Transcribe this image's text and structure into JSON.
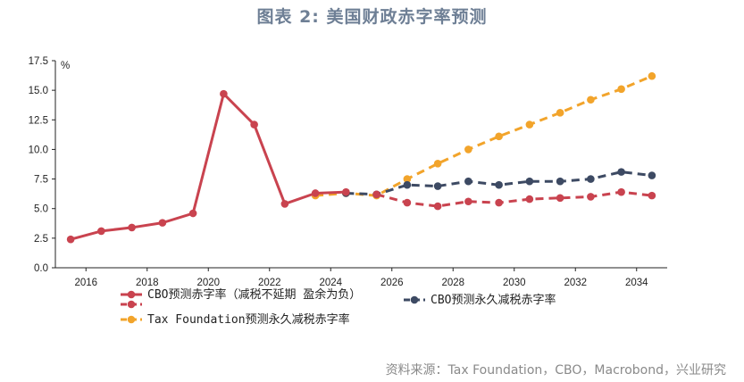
{
  "title": "图表 2:  美国财政赤字率预测",
  "source": "资料来源：Tax Foundation，CBO，Macrobond，兴业研究",
  "chart_data": {
    "type": "line",
    "ylabel": "%",
    "ylim": [
      0,
      17.5
    ],
    "xlim": [
      2015,
      2035
    ],
    "yticks": [
      "0.0",
      "2.5",
      "5.0",
      "7.5",
      "10.0",
      "12.5",
      "15.0",
      "17.5"
    ],
    "xticks": [
      "2016",
      "2018",
      "2020",
      "2022",
      "2024",
      "2026",
      "2028",
      "2030",
      "2032",
      "2034"
    ],
    "legend_placement": "bottom",
    "series": [
      {
        "name": "CBO预测赤字率（减税不延期 盈余为负）",
        "color": "#c9434f",
        "dash": false,
        "x": [
          2015.5,
          2016.5,
          2017.5,
          2018.5,
          2019.5,
          2020.5,
          2021.5,
          2022.5,
          2023.5,
          2024.5
        ],
        "y": [
          2.4,
          3.1,
          3.4,
          3.8,
          4.6,
          14.7,
          12.1,
          5.4,
          6.3,
          6.4
        ]
      },
      {
        "name": "",
        "color": "#c9434f",
        "dash": true,
        "x": [
          2025.5,
          2026.5,
          2027.5,
          2028.5,
          2029.5,
          2030.5,
          2031.5,
          2032.5,
          2033.5,
          2034.5
        ],
        "y": [
          6.2,
          5.5,
          5.2,
          5.6,
          5.5,
          5.8,
          5.9,
          6.0,
          6.4,
          6.1
        ]
      },
      {
        "name": "CBO预测永久减税赤字率",
        "color": "#3d4a63",
        "dash": true,
        "x": [
          2024.5,
          2025.5,
          2026.5,
          2027.5,
          2028.5,
          2029.5,
          2030.5,
          2031.5,
          2032.5,
          2033.5,
          2034.5
        ],
        "y": [
          6.3,
          6.2,
          7.0,
          6.9,
          7.3,
          7.0,
          7.3,
          7.3,
          7.5,
          8.1,
          7.8
        ]
      },
      {
        "name": "Tax Foundation预测永久减税赤字率",
        "color": "#f2a42b",
        "dash": true,
        "x": [
          2023.5,
          2024.5,
          2025.5,
          2026.5,
          2027.5,
          2028.5,
          2029.5,
          2030.5,
          2031.5,
          2032.5,
          2033.5,
          2034.5
        ],
        "y": [
          6.1,
          6.3,
          6.1,
          7.5,
          8.8,
          10.0,
          11.1,
          12.1,
          13.1,
          14.2,
          15.1,
          16.2
        ]
      }
    ]
  }
}
